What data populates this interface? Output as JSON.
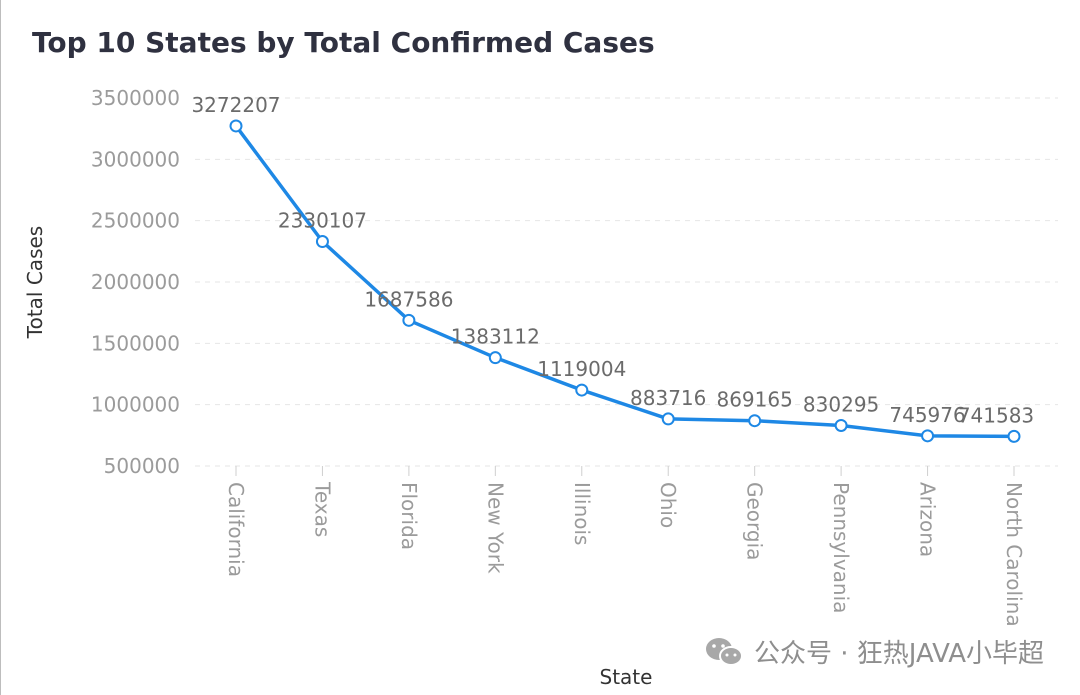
{
  "chart_data": {
    "type": "line",
    "title": "Top 10 States by Total Confirmed Cases",
    "xlabel": "State",
    "ylabel": "Total Cases",
    "categories": [
      "California",
      "Texas",
      "Florida",
      "New York",
      "Illinois",
      "Ohio",
      "Georgia",
      "Pennsylvania",
      "Arizona",
      "North Carolina"
    ],
    "values": [
      3272207,
      2330107,
      1687586,
      1383112,
      1119004,
      883716,
      869165,
      830295,
      745976,
      741583
    ],
    "yticks": [
      "3500000",
      "3000000",
      "2500000",
      "2000000",
      "1500000",
      "1000000",
      "500000"
    ],
    "ylim": [
      500000,
      3500000
    ],
    "grid": true,
    "color": "#1e88e5"
  },
  "watermark": {
    "text": "公众号 · 狂热JAVA小毕超",
    "icon": "wechat-icon"
  }
}
